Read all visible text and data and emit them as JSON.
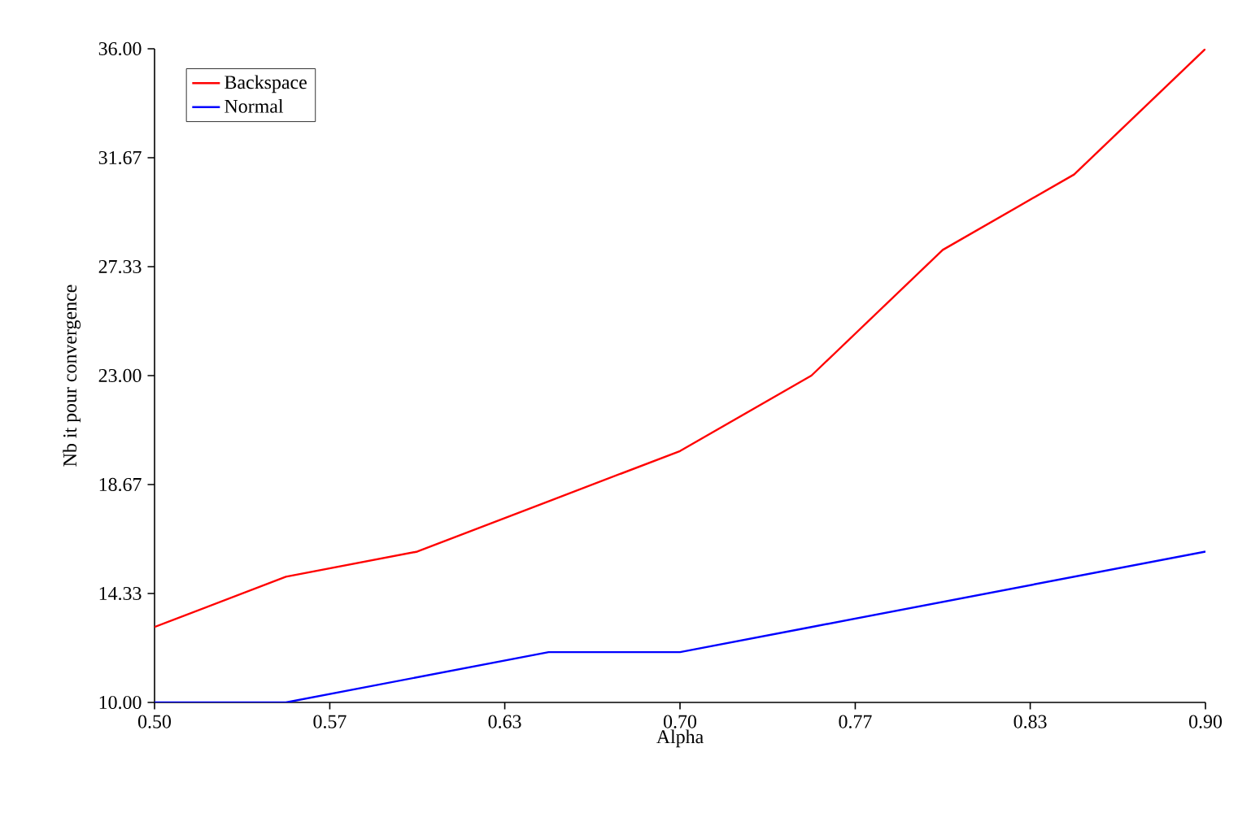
{
  "chart_data": {
    "type": "line",
    "xlabel": "Alpha",
    "ylabel": "Nb it pour convergence",
    "x": [
      0.5,
      0.55,
      0.6,
      0.65,
      0.7,
      0.75,
      0.8,
      0.85,
      0.9
    ],
    "series": [
      {
        "name": "Backspace",
        "color": "#ff0000",
        "values": [
          13,
          15,
          16,
          18,
          20,
          23,
          28,
          31,
          36
        ]
      },
      {
        "name": "Normal",
        "color": "#0000ff",
        "values": [
          10,
          10,
          11,
          12,
          12,
          13,
          14,
          15,
          16
        ]
      }
    ],
    "xlim": [
      0.5,
      0.9
    ],
    "ylim": [
      10,
      36
    ],
    "xticks": [
      {
        "value": 0.5,
        "label": "0.50"
      },
      {
        "value": 0.5667,
        "label": "0.57"
      },
      {
        "value": 0.6333,
        "label": "0.63"
      },
      {
        "value": 0.7,
        "label": "0.70"
      },
      {
        "value": 0.7667,
        "label": "0.77"
      },
      {
        "value": 0.8333,
        "label": "0.83"
      },
      {
        "value": 0.9,
        "label": "0.90"
      }
    ],
    "yticks": [
      {
        "value": 10,
        "label": "10.00"
      },
      {
        "value": 14.333,
        "label": "14.33"
      },
      {
        "value": 18.667,
        "label": "18.67"
      },
      {
        "value": 23,
        "label": "23.00"
      },
      {
        "value": 27.333,
        "label": "27.33"
      },
      {
        "value": 31.667,
        "label": "31.67"
      },
      {
        "value": 36,
        "label": "36.00"
      }
    ],
    "legend": "top left",
    "grid": false,
    "marker": "none",
    "line_style": "solid"
  }
}
